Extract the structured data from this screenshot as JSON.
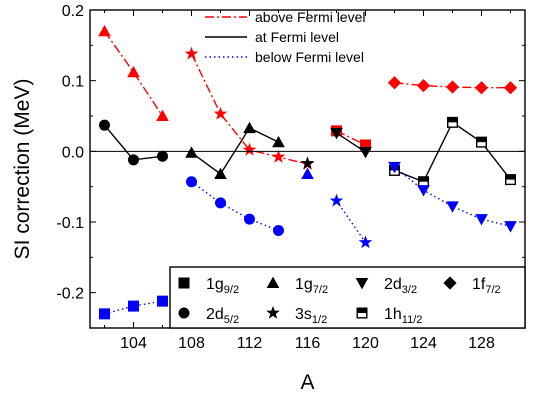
{
  "chart_data": {
    "type": "scatter",
    "xlabel": "A",
    "ylabel": "SI correction (MeV)",
    "xlim": [
      101,
      131
    ],
    "ylim": [
      -0.25,
      0.2
    ],
    "xticks": [
      104,
      108,
      112,
      116,
      120,
      124,
      128
    ],
    "xtick_labels": [
      "104",
      "108",
      "112",
      "116",
      "120",
      "124",
      "128"
    ],
    "yticks": [
      -0.2,
      -0.1,
      0.0,
      0.1,
      0.2
    ],
    "ytick_labels": [
      "-0.2",
      "-0.1",
      "0.0",
      "0.1",
      "0.2"
    ],
    "zero_line": true,
    "line_legend": [
      {
        "label": "above Fermi level",
        "color": "#ff0000",
        "dash": "dashdot"
      },
      {
        "label": "at Fermi level",
        "color": "#000000",
        "dash": "solid"
      },
      {
        "label": "below Fermi level",
        "color": "#0000ff",
        "dash": "dot"
      }
    ],
    "symbol_legend": [
      {
        "label": "1g",
        "sub": "9/2",
        "marker": "square"
      },
      {
        "label": "1g",
        "sub": "7/2",
        "marker": "triangle-up"
      },
      {
        "label": "2d",
        "sub": "3/2",
        "marker": "triangle-down"
      },
      {
        "label": "1f",
        "sub": "7/2",
        "marker": "diamond"
      },
      {
        "label": "2d",
        "sub": "5/2",
        "marker": "circle"
      },
      {
        "label": "3s",
        "sub": "1/2",
        "marker": "star"
      },
      {
        "label": "1h",
        "sub": "11/2",
        "marker": "half-square"
      }
    ],
    "series": [
      {
        "level": "above",
        "color": "#ff0000",
        "dash": "dashdot",
        "points": [
          {
            "x": 102,
            "y": 0.17,
            "marker": "triangle-up"
          },
          {
            "x": 104,
            "y": 0.112,
            "marker": "triangle-up"
          },
          {
            "x": 106,
            "y": 0.05,
            "marker": "triangle-up"
          }
        ]
      },
      {
        "level": "above",
        "color": "#ff0000",
        "dash": "dashdot",
        "points": [
          {
            "x": 108,
            "y": 0.138,
            "marker": "star"
          },
          {
            "x": 110,
            "y": 0.053,
            "marker": "star"
          },
          {
            "x": 112,
            "y": 0.002,
            "marker": "star"
          },
          {
            "x": 114,
            "y": -0.008,
            "marker": "star"
          },
          {
            "x": 116,
            "y": -0.018,
            "marker": "star"
          }
        ]
      },
      {
        "level": "above",
        "color": "#ff0000",
        "dash": "dashdot",
        "points": [
          {
            "x": 118,
            "y": 0.029,
            "marker": "square"
          },
          {
            "x": 120,
            "y": 0.009,
            "marker": "square"
          }
        ]
      },
      {
        "level": "above",
        "color": "#ff0000",
        "dash": "dashdot",
        "points": [
          {
            "x": 122,
            "y": 0.097,
            "marker": "diamond"
          },
          {
            "x": 124,
            "y": 0.093,
            "marker": "diamond"
          },
          {
            "x": 126,
            "y": 0.091,
            "marker": "diamond"
          },
          {
            "x": 128,
            "y": 0.09,
            "marker": "diamond"
          },
          {
            "x": 130,
            "y": 0.09,
            "marker": "diamond"
          }
        ]
      },
      {
        "level": "at",
        "color": "#000000",
        "dash": "solid",
        "points": [
          {
            "x": 102,
            "y": 0.037,
            "marker": "circle"
          },
          {
            "x": 104,
            "y": -0.012,
            "marker": "circle"
          },
          {
            "x": 106,
            "y": -0.007,
            "marker": "circle"
          }
        ]
      },
      {
        "level": "at",
        "color": "#000000",
        "dash": "solid",
        "points": [
          {
            "x": 108,
            "y": -0.002,
            "marker": "triangle-up"
          },
          {
            "x": 110,
            "y": -0.032,
            "marker": "triangle-up"
          },
          {
            "x": 112,
            "y": 0.033,
            "marker": "triangle-up"
          },
          {
            "x": 114,
            "y": 0.013,
            "marker": "triangle-up"
          }
        ]
      },
      {
        "level": "at",
        "color": "#000000",
        "dash": "solid",
        "points": [
          {
            "x": 116,
            "y": -0.017,
            "marker": "star"
          }
        ]
      },
      {
        "level": "at",
        "color": "#000000",
        "dash": "solid",
        "points": [
          {
            "x": 118,
            "y": 0.026,
            "marker": "triangle-down"
          },
          {
            "x": 120,
            "y": -0.001,
            "marker": "triangle-down"
          }
        ]
      },
      {
        "level": "at",
        "color": "#000000",
        "dash": "solid",
        "points": [
          {
            "x": 122,
            "y": -0.027,
            "marker": "half-square"
          },
          {
            "x": 124,
            "y": -0.043,
            "marker": "half-square"
          },
          {
            "x": 126,
            "y": 0.041,
            "marker": "half-square"
          },
          {
            "x": 128,
            "y": 0.013,
            "marker": "half-square"
          },
          {
            "x": 130,
            "y": -0.04,
            "marker": "half-square"
          }
        ]
      },
      {
        "level": "below",
        "color": "#0000ff",
        "dash": "dot",
        "points": [
          {
            "x": 102,
            "y": -0.23,
            "marker": "square"
          },
          {
            "x": 104,
            "y": -0.219,
            "marker": "square"
          },
          {
            "x": 106,
            "y": -0.212,
            "marker": "square"
          }
        ]
      },
      {
        "level": "below",
        "color": "#0000ff",
        "dash": "dot",
        "points": [
          {
            "x": 108,
            "y": -0.043,
            "marker": "circle"
          },
          {
            "x": 110,
            "y": -0.073,
            "marker": "circle"
          },
          {
            "x": 112,
            "y": -0.096,
            "marker": "circle"
          },
          {
            "x": 114,
            "y": -0.112,
            "marker": "circle"
          }
        ]
      },
      {
        "level": "below",
        "color": "#0000ff",
        "dash": "dot",
        "points": [
          {
            "x": 116,
            "y": -0.032,
            "marker": "triangle-up"
          }
        ]
      },
      {
        "level": "below",
        "color": "#0000ff",
        "dash": "dot",
        "points": [
          {
            "x": 118,
            "y": -0.07,
            "marker": "star"
          },
          {
            "x": 120,
            "y": -0.129,
            "marker": "star"
          }
        ]
      },
      {
        "level": "below",
        "color": "#0000ff",
        "dash": "dot",
        "points": [
          {
            "x": 122,
            "y": -0.022,
            "marker": "triangle-down"
          },
          {
            "x": 124,
            "y": -0.055,
            "marker": "triangle-down"
          },
          {
            "x": 126,
            "y": -0.078,
            "marker": "triangle-down"
          },
          {
            "x": 128,
            "y": -0.096,
            "marker": "triangle-down"
          },
          {
            "x": 130,
            "y": -0.106,
            "marker": "triangle-down"
          }
        ]
      }
    ]
  }
}
